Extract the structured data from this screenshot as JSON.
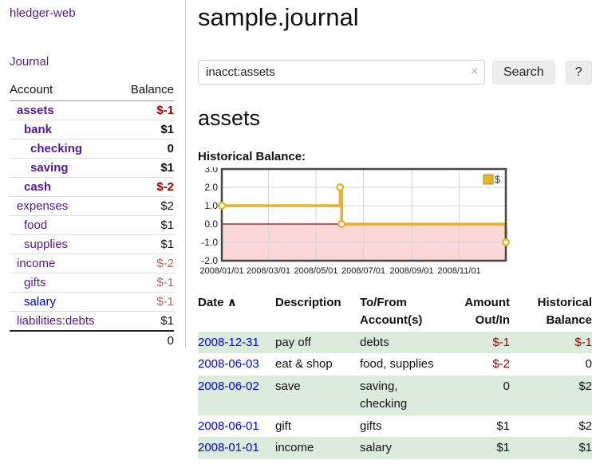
{
  "app_title": "hledger-web",
  "colors": {
    "link_purple": "#551a8b",
    "link_blue": "#0000e6",
    "negative_strong": "#a40000",
    "negative_soft": "#b36a6a",
    "row_shade_green": "#dcecdc"
  },
  "sidebar": {
    "journal_link": "Journal",
    "account_header": "Account",
    "balance_header": "Balance",
    "accounts": [
      {
        "name": "assets",
        "balance": "$-1"
      },
      {
        "name": "bank",
        "balance": "$1"
      },
      {
        "name": "checking",
        "balance": "0"
      },
      {
        "name": "saving",
        "balance": "$1"
      },
      {
        "name": "cash",
        "balance": "$-2"
      },
      {
        "name": "expenses",
        "balance": "$2"
      },
      {
        "name": "food",
        "balance": "$1"
      },
      {
        "name": "supplies",
        "balance": "$1"
      },
      {
        "name": "income",
        "balance": "$-2"
      },
      {
        "name": "gifts",
        "balance": "$-1"
      },
      {
        "name": "salary",
        "balance": "$-1"
      },
      {
        "name": "liabilities:debts",
        "balance": "$1"
      }
    ],
    "total": "0"
  },
  "header_title": "sample.journal",
  "search": {
    "value": "inacct:assets",
    "clear_icon": "×",
    "search_button": "Search",
    "help_button": "?"
  },
  "account_page": {
    "title": "assets",
    "chart_title": "Historical Balance:"
  },
  "chart_data": {
    "type": "line",
    "step": true,
    "title": "Historical Balance:",
    "x_range": [
      "2008-01-01",
      "2008-12-31"
    ],
    "ylim": [
      -2,
      3
    ],
    "y_ticks": [
      "3.0",
      "2.0",
      "1.0",
      "0.0",
      "-1.0",
      "-2.0"
    ],
    "x_ticks": [
      {
        "date": "2008-01-01",
        "label": "2008/01/01"
      },
      {
        "date": "2008-03-01",
        "label": "2008/03/01"
      },
      {
        "date": "2008-05-01",
        "label": "2008/05/01"
      },
      {
        "date": "2008-07-01",
        "label": "2008/07/01"
      },
      {
        "date": "2008-09-01",
        "label": "2008/09/01"
      },
      {
        "date": "2008-11-01",
        "label": "2008/11/01"
      }
    ],
    "series": [
      {
        "name": "$",
        "color": "#e4b329",
        "points": [
          {
            "date": "2008-01-01",
            "value": 1
          },
          {
            "date": "2008-06-01",
            "value": 2
          },
          {
            "date": "2008-06-03",
            "value": 0
          },
          {
            "date": "2008-12-31",
            "value": -1
          }
        ]
      }
    ],
    "legend": [
      {
        "label": "$",
        "color": "#e4b329",
        "position": "top-right"
      }
    ],
    "grid": true,
    "grid_color": "#d5d5d5",
    "border_color": "#464646",
    "zero_line_color": "#8b0000",
    "negative_region_fill": "#fbd7d7"
  },
  "register": {
    "headers": {
      "date": "Date",
      "sort_arrow": "∧",
      "description": "Description",
      "accounts": "To/From Account(s)",
      "amount": "Amount Out/In",
      "balance": "Historical Balance"
    },
    "rows": [
      {
        "date": "2008-12-31",
        "description": "pay off",
        "accounts": "debts",
        "amount": "$-1",
        "balance": "$-1"
      },
      {
        "date": "2008-06-03",
        "description": "eat & shop",
        "accounts": "food, supplies",
        "amount": "$-2",
        "balance": "0"
      },
      {
        "date": "2008-06-02",
        "description": "save",
        "accounts": "saving, checking",
        "amount": "0",
        "balance": "$2"
      },
      {
        "date": "2008-06-01",
        "description": "gift",
        "accounts": "gifts",
        "amount": "$1",
        "balance": "$2"
      },
      {
        "date": "2008-01-01",
        "description": "income",
        "accounts": "salary",
        "amount": "$1",
        "balance": "$1"
      }
    ]
  }
}
